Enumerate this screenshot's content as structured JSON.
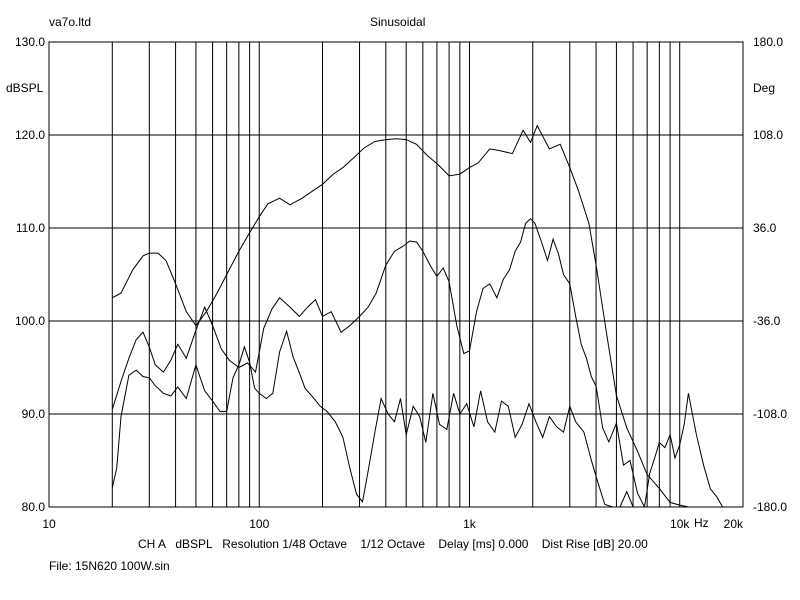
{
  "header": {
    "left": "va7o.ltd",
    "center": "Sinusoidal"
  },
  "footer": {
    "status_line": "CH A   dBSPL   Resolution 1/48 Octave    1/12 Octave    Delay [ms] 0.000    Dist Rise [dB] 20.00",
    "file_line": "File: 15N620 100W.sin"
  },
  "colors": {
    "background": "#ffffff",
    "grid": "#000000",
    "trace": "#000000"
  },
  "chart_data": {
    "type": "line",
    "title": "Sinusoidal",
    "xlabel": "Hz",
    "ylabel": "dBSPL",
    "y2label": "Deg",
    "xscale": "log",
    "xlim": [
      10,
      20000
    ],
    "ylim": [
      80,
      130
    ],
    "y2lim": [
      -180,
      180
    ],
    "grid": true,
    "x_tick_labels": [
      "10",
      "100",
      "1k",
      "10k",
      "20k"
    ],
    "y_tick_labels": [
      "80.0",
      "90.0",
      "100.0",
      "110.0",
      "120.0",
      "130.0"
    ],
    "y2_tick_labels": [
      "-180.0",
      "-108.0",
      "-36.0",
      "36.0",
      "108.0",
      "180.0"
    ],
    "series": [
      {
        "x": [
          20,
          22,
          25,
          28,
          30,
          33,
          36,
          40,
          45,
          50,
          56,
          63,
          70,
          80,
          90,
          100,
          110,
          125,
          140,
          160,
          180,
          200,
          225,
          250,
          280,
          315,
          355,
          400,
          450,
          500,
          560,
          630,
          710,
          800,
          900,
          1000,
          1100,
          1250,
          1400,
          1600,
          1800,
          1950,
          2100,
          2400,
          2700,
          3000,
          3300,
          3700,
          4000,
          4500,
          5000,
          5600,
          6300,
          7000,
          8000,
          9000,
          10000,
          11000,
          12500,
          14000,
          16000
        ],
        "values": [
          102.5,
          103,
          105.5,
          107,
          107.3,
          107.3,
          106.5,
          104,
          101,
          99.5,
          101,
          103,
          105,
          107.5,
          109.5,
          111.2,
          112.6,
          113.2,
          112.5,
          113.2,
          114,
          114.7,
          115.8,
          116.5,
          117.5,
          118.6,
          119.3,
          119.5,
          119.6,
          119.5,
          119,
          117.8,
          116.8,
          115.6,
          115.8,
          116.5,
          117,
          118.5,
          118.3,
          118,
          120.5,
          119.2,
          121,
          118.5,
          119,
          116.5,
          114,
          110.5,
          106,
          98.5,
          92,
          88.5,
          86,
          83.5,
          82,
          80.5,
          80.2,
          80,
          80,
          80,
          80
        ]
      },
      {
        "x": [
          20,
          22,
          24,
          26,
          28,
          30,
          32,
          35,
          38,
          41,
          45,
          50,
          55,
          60,
          66,
          72,
          80,
          88,
          96,
          105,
          115,
          125,
          140,
          155,
          170,
          185,
          200,
          220,
          245,
          270,
          300,
          330,
          360,
          400,
          440,
          480,
          520,
          560,
          600,
          650,
          700,
          750,
          800,
          870,
          940,
          1000,
          1080,
          1160,
          1250,
          1350,
          1450,
          1550,
          1650,
          1750,
          1850,
          1950,
          2050,
          2200,
          2350,
          2500,
          2650,
          2800,
          3000,
          3200,
          3400,
          3600,
          3800,
          4000,
          4300,
          4600,
          5000,
          5400,
          5800,
          6300,
          6800,
          7400,
          8000,
          8700,
          9400,
          10000,
          11000,
          12000,
          13000,
          14000,
          15000,
          16000
        ],
        "values": [
          90.5,
          93.5,
          96,
          98,
          98.8,
          97.2,
          95.3,
          94.5,
          95.8,
          97.5,
          96,
          99,
          101.5,
          99.5,
          97,
          95.8,
          95,
          95.5,
          94.5,
          99.2,
          101.3,
          102.5,
          101.5,
          100.5,
          101.5,
          102.3,
          100.5,
          101,
          98.8,
          99.5,
          100.5,
          101.5,
          103,
          106,
          107.5,
          108,
          108.6,
          108.5,
          107.5,
          106,
          104.8,
          105.7,
          104.2,
          99.5,
          96.5,
          96.8,
          101,
          103.5,
          104,
          102.5,
          104.5,
          105.5,
          107.5,
          108.5,
          110.5,
          111,
          110.5,
          108.5,
          106.5,
          108.8,
          107.2,
          105,
          104,
          100.5,
          97.5,
          96,
          94,
          93,
          88.5,
          87,
          89,
          84.5,
          85,
          81.5,
          80,
          80,
          80,
          80,
          80,
          80,
          80,
          80,
          80,
          80,
          80,
          80
        ]
      },
      {
        "x": [
          20,
          21,
          22,
          24,
          26,
          28,
          30,
          32,
          35,
          38,
          41,
          45,
          50,
          55,
          60,
          65,
          70,
          75,
          80,
          85,
          90,
          95,
          100,
          108,
          116,
          125,
          135,
          145,
          155,
          165,
          180,
          195,
          210,
          230,
          250,
          270,
          290,
          310,
          330,
          355,
          380,
          410,
          440,
          470,
          500,
          540,
          580,
          620,
          670,
          720,
          780,
          840,
          900,
          970,
          1050,
          1130,
          1220,
          1320,
          1420,
          1530,
          1650,
          1780,
          1920,
          2070,
          2230,
          2400,
          2600,
          2800,
          3000,
          3200,
          3500,
          3800,
          4100,
          4400,
          4800,
          5200,
          5600,
          6000,
          6400,
          6800,
          7200,
          7600,
          8000,
          8500,
          9000,
          9500,
          10000,
          10500,
          11000,
          12000,
          13000,
          14000,
          15000,
          16000
        ],
        "values": [
          -165,
          -150,
          -110,
          -78,
          -74,
          -79,
          -80,
          -86,
          -92,
          -94,
          -87,
          -96,
          -70,
          -90,
          -98,
          -106,
          -106,
          -80,
          -70,
          -56,
          -68,
          -88,
          -92,
          -96,
          -92,
          -60,
          -44,
          -64,
          -76,
          -88,
          -95,
          -102,
          -106,
          -114,
          -126,
          -150,
          -170,
          -176,
          -152,
          -122,
          -96,
          -108,
          -114,
          -96,
          -124,
          -102,
          -110,
          -130,
          -92,
          -116,
          -120,
          -92,
          -108,
          -100,
          -118,
          -90,
          -114,
          -122,
          -98,
          -102,
          -126,
          -116,
          -100,
          -114,
          -126,
          -110,
          -118,
          -122,
          -102,
          -114,
          -122,
          -144,
          -162,
          -178,
          -180,
          -180,
          -168,
          -180,
          -180,
          -180,
          -154,
          -142,
          -130,
          -134,
          -124,
          -142,
          -132,
          -116,
          -92,
          -124,
          -148,
          -166,
          -172,
          -180
        ]
      }
    ]
  }
}
